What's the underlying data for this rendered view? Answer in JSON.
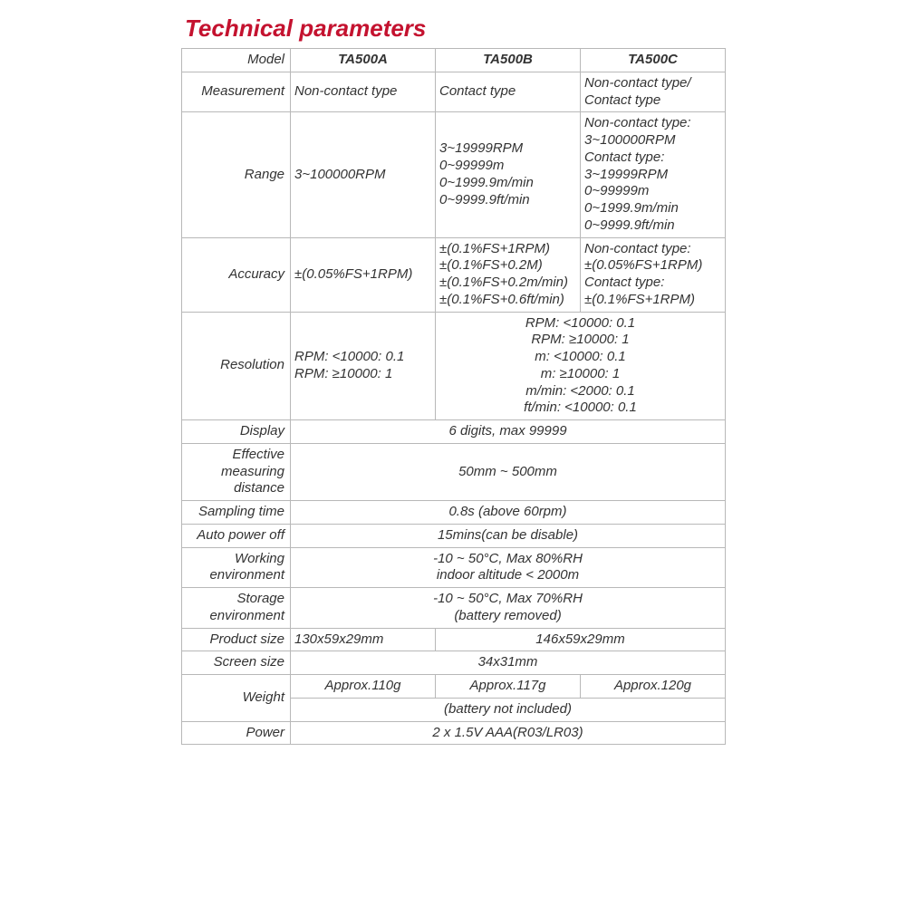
{
  "title": "Technical parameters",
  "header": {
    "label": "Model",
    "models": [
      "TA500A",
      "TA500B",
      "TA500C"
    ]
  },
  "rows": {
    "measurement": {
      "label": "Measurement",
      "a": "Non-contact type",
      "b": "Contact type",
      "c": "Non-contact type/ Contact type"
    },
    "range": {
      "label": "Range",
      "a": "3~100000RPM",
      "b": "3~19999RPM\n0~99999m\n0~1999.9m/min\n0~9999.9ft/min",
      "c": "Non-contact type:\n3~100000RPM\nContact type:\n3~19999RPM\n0~99999m\n0~1999.9m/min\n0~9999.9ft/min"
    },
    "accuracy": {
      "label": "Accuracy",
      "a": "±(0.05%FS+1RPM)",
      "b": "±(0.1%FS+1RPM)\n±(0.1%FS+0.2M)\n±(0.1%FS+0.2m/min)\n±(0.1%FS+0.6ft/min)",
      "c": "Non-contact type:\n±(0.05%FS+1RPM)\nContact type:\n±(0.1%FS+1RPM)"
    },
    "resolution": {
      "label": "Resolution",
      "a": "RPM: <10000: 0.1\nRPM: ≥10000: 1",
      "bc": "RPM: <10000: 0.1\nRPM: ≥10000: 1\nm: <10000: 0.1\nm: ≥10000: 1\nm/min: <2000: 0.1\nft/min: <10000: 0.1"
    },
    "display": {
      "label": "Display",
      "all": "6 digits, max 99999"
    },
    "eff_dist": {
      "label": "Effective measuring distance",
      "all": "50mm ~ 500mm"
    },
    "sampling": {
      "label": "Sampling time",
      "all": "0.8s (above 60rpm)"
    },
    "auto_off": {
      "label": "Auto power off",
      "all": "15mins(can be disable)"
    },
    "work_env": {
      "label": "Working environment",
      "all": "-10 ~ 50°C, Max 80%RH\nindoor altitude < 2000m"
    },
    "stor_env": {
      "label": "Storage environment",
      "all": "-10 ~ 50°C, Max 70%RH\n(battery removed)"
    },
    "prod_size": {
      "label": "Product size",
      "a": "130x59x29mm",
      "bc": "146x59x29mm"
    },
    "screen": {
      "label": "Screen size",
      "all": "34x31mm"
    },
    "weight": {
      "label": "Weight",
      "a": "Approx.110g",
      "b": "Approx.117g",
      "c": "Approx.120g",
      "note": "(battery not included)"
    },
    "power": {
      "label": "Power",
      "all": "2 x 1.5V AAA(R03/LR03)"
    }
  },
  "style": {
    "title_color": "#c4122f",
    "border_color": "#b8b8b8",
    "text_color": "#333333",
    "font_style": "italic",
    "base_fontsize": 15,
    "title_fontsize": 26
  }
}
